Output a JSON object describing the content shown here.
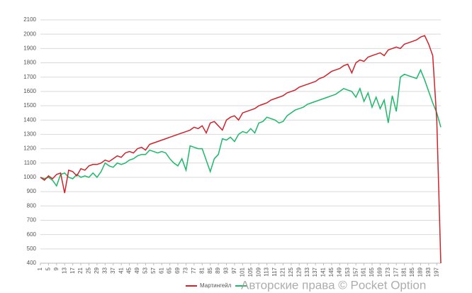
{
  "chart_data": {
    "type": "line",
    "x": [
      1,
      3,
      5,
      7,
      9,
      11,
      13,
      15,
      17,
      19,
      21,
      23,
      25,
      27,
      29,
      31,
      33,
      35,
      37,
      39,
      41,
      43,
      45,
      47,
      49,
      51,
      53,
      55,
      57,
      59,
      61,
      63,
      65,
      67,
      69,
      71,
      73,
      75,
      77,
      79,
      81,
      83,
      85,
      87,
      89,
      91,
      93,
      95,
      97,
      99,
      101,
      103,
      105,
      107,
      109,
      111,
      113,
      115,
      117,
      119,
      121,
      123,
      125,
      127,
      129,
      131,
      133,
      135,
      137,
      139,
      141,
      143,
      145,
      147,
      149,
      151,
      153,
      155,
      157,
      159,
      161,
      163,
      165,
      167,
      169,
      171,
      173,
      175,
      177,
      179,
      181,
      183,
      185,
      187,
      189,
      191,
      193,
      195,
      197,
      199
    ],
    "series": [
      {
        "name": "Мартингейл",
        "color": "#d0222a",
        "values": [
          1000,
          980,
          1010,
          990,
          1020,
          1030,
          890,
          1050,
          1040,
          1010,
          1060,
          1050,
          1080,
          1090,
          1090,
          1100,
          1120,
          1110,
          1130,
          1150,
          1140,
          1170,
          1180,
          1170,
          1200,
          1210,
          1190,
          1230,
          1240,
          1250,
          1260,
          1270,
          1280,
          1290,
          1300,
          1310,
          1320,
          1330,
          1350,
          1340,
          1360,
          1310,
          1380,
          1390,
          1360,
          1330,
          1400,
          1420,
          1430,
          1400,
          1450,
          1460,
          1470,
          1480,
          1500,
          1510,
          1520,
          1540,
          1550,
          1560,
          1570,
          1590,
          1600,
          1610,
          1630,
          1640,
          1650,
          1660,
          1670,
          1690,
          1700,
          1720,
          1740,
          1750,
          1760,
          1780,
          1790,
          1730,
          1800,
          1820,
          1810,
          1840,
          1850,
          1860,
          1870,
          1850,
          1890,
          1900,
          1910,
          1900,
          1930,
          1940,
          1950,
          1960,
          1980,
          1990,
          1930,
          1850,
          1400,
          400
        ]
      },
      {
        "color": "#1db86a",
        "values": [
          1000,
          990,
          1000,
          980,
          940,
          1020,
          1030,
          1000,
          990,
          1020,
          1000,
          1010,
          1000,
          1030,
          1000,
          1040,
          1100,
          1080,
          1070,
          1100,
          1090,
          1100,
          1120,
          1130,
          1150,
          1160,
          1160,
          1190,
          1180,
          1170,
          1180,
          1170,
          1130,
          1100,
          1080,
          1130,
          1050,
          1220,
          1210,
          1200,
          1200,
          1120,
          1040,
          1130,
          1160,
          1270,
          1260,
          1280,
          1250,
          1300,
          1320,
          1310,
          1340,
          1310,
          1380,
          1390,
          1420,
          1410,
          1400,
          1380,
          1390,
          1430,
          1450,
          1470,
          1480,
          1490,
          1510,
          1520,
          1530,
          1540,
          1550,
          1560,
          1570,
          1580,
          1600,
          1620,
          1610,
          1600,
          1560,
          1620,
          1530,
          1590,
          1490,
          1560,
          1480,
          1540,
          1380,
          1570,
          1460,
          1700,
          1720,
          1710,
          1700,
          1690,
          1750,
          1680,
          1600,
          1520,
          1450,
          1350
        ]
      }
    ],
    "xlim": [
      1,
      199
    ],
    "xticks": [
      1,
      5,
      9,
      13,
      17,
      21,
      25,
      29,
      33,
      37,
      41,
      45,
      49,
      53,
      57,
      61,
      65,
      69,
      73,
      77,
      81,
      85,
      89,
      93,
      97,
      101,
      105,
      109,
      113,
      117,
      121,
      125,
      129,
      133,
      137,
      141,
      145,
      149,
      153,
      157,
      161,
      165,
      169,
      173,
      177,
      181,
      185,
      189,
      193,
      197
    ],
    "ylim": [
      400,
      2100
    ],
    "yticks": [
      400,
      500,
      600,
      700,
      800,
      900,
      1000,
      1100,
      1200,
      1300,
      1400,
      1500,
      1600,
      1700,
      1800,
      1900,
      2000,
      2100
    ],
    "grid": true,
    "watermark": "Авторские права © Pocket Option"
  }
}
